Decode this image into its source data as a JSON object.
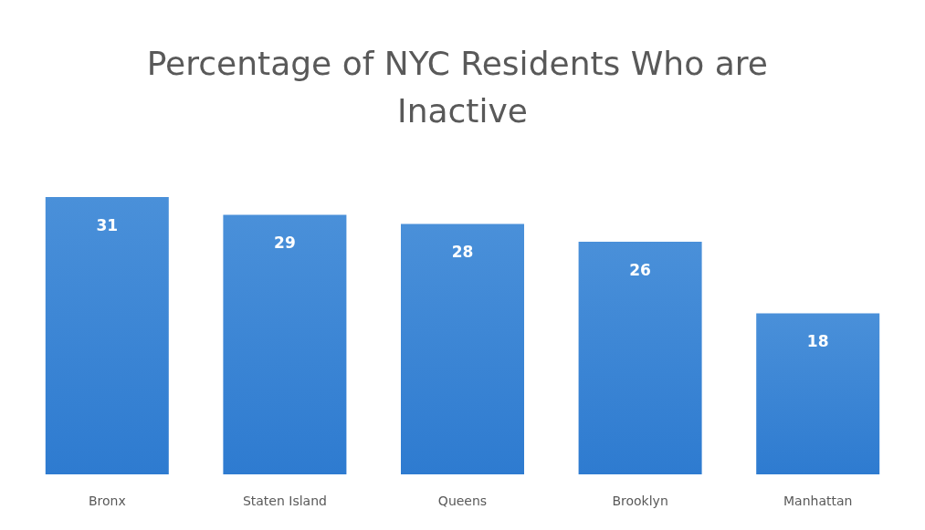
{
  "chart_data": {
    "type": "bar",
    "title": "Percentage of NYC Residents Who are Inactive",
    "categories": [
      "Bronx",
      "Staten Island",
      "Queens",
      "Brooklyn",
      "Manhattan"
    ],
    "values": [
      31,
      29,
      28,
      26,
      18
    ],
    "color": "#4a90d9",
    "data_labels": true
  }
}
